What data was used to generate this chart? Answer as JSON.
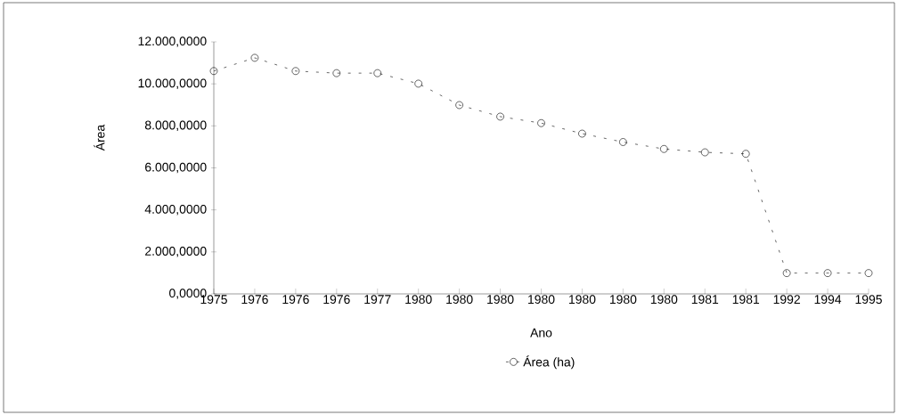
{
  "chart_data": {
    "type": "line",
    "xlabel": "Ano",
    "ylabel": "Área",
    "categories": [
      "1975",
      "1976",
      "1976",
      "1976",
      "1977",
      "1980",
      "1980",
      "1980",
      "1980",
      "1980",
      "1980",
      "1980",
      "1981",
      "1981",
      "1992",
      "1994",
      "1995"
    ],
    "series": [
      {
        "name": "Área (ha)",
        "color": "#000000",
        "values": [
          10610,
          11240,
          10610,
          10510,
          10510,
          10010,
          8990,
          8440,
          8130,
          7630,
          7230,
          6900,
          6740,
          6670,
          990,
          990,
          990
        ]
      }
    ],
    "ylim": [
      0,
      12000
    ],
    "yticks": [
      {
        "value": 0,
        "label": "0,0000"
      },
      {
        "value": 2000,
        "label": "2.000,0000"
      },
      {
        "value": 4000,
        "label": "4.000,0000"
      },
      {
        "value": 6000,
        "label": "6.000,0000"
      },
      {
        "value": 8000,
        "label": "8.000,0000"
      },
      {
        "value": 10000,
        "label": "10.000,0000"
      },
      {
        "value": 12000,
        "label": "12.000,0000"
      }
    ],
    "marker": "circle",
    "line_style": "dashed",
    "legend": "bottom",
    "grid": false
  }
}
